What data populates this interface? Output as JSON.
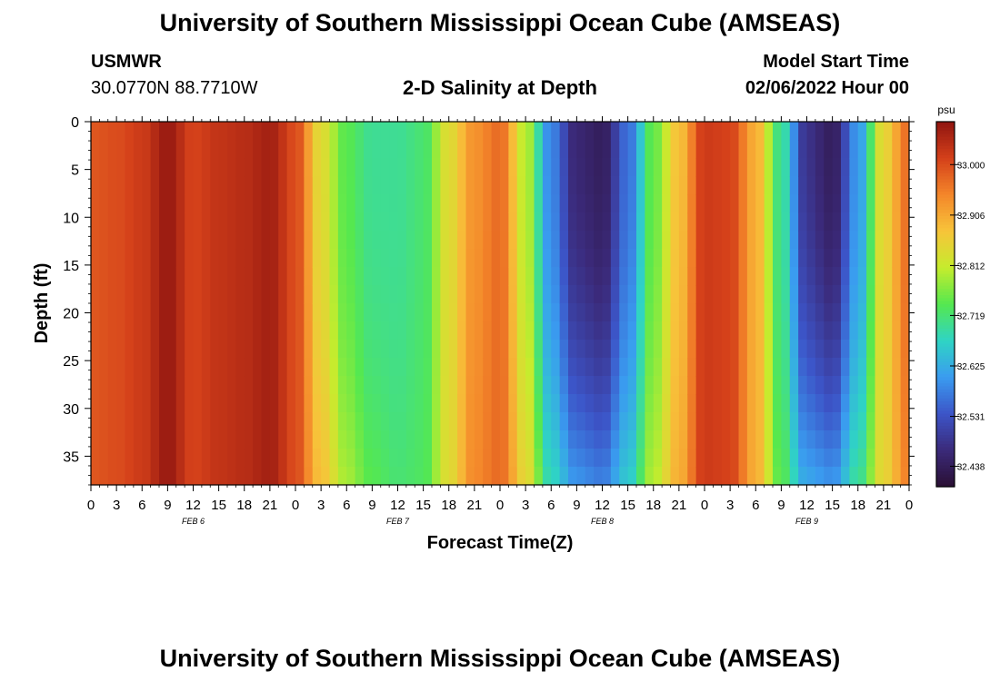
{
  "header": {
    "title": "University of Southern Mississippi Ocean Cube (AMSEAS)",
    "station_name": "USMWR",
    "station_coords": "30.0770N  88.7710W",
    "plot_title": "2-D Salinity at Depth",
    "model_start_label": "Model Start Time",
    "model_start_value": "02/06/2022 Hour 00",
    "repeat_title": "University of Southern Mississippi Ocean Cube (AMSEAS)"
  },
  "chart_data": {
    "type": "heatmap",
    "title": "2-D Salinity at Depth",
    "xlabel": "Forecast Time(Z)",
    "ylabel": "Depth (ft)",
    "x_unit": "forecast hour",
    "xlim": [
      0,
      96
    ],
    "ylim": [
      38,
      0
    ],
    "y_inverted": true,
    "x_tick_labels": [
      "0",
      "3",
      "6",
      "9",
      "12",
      "15",
      "18",
      "21",
      "0",
      "3",
      "6",
      "9",
      "12",
      "15",
      "18",
      "21",
      "0",
      "3",
      "6",
      "9",
      "12",
      "15",
      "18",
      "21",
      "0",
      "3",
      "6",
      "9",
      "12",
      "15",
      "18",
      "21",
      "0"
    ],
    "y_ticks": [
      0,
      5,
      10,
      15,
      20,
      25,
      30,
      35
    ],
    "day_labels": [
      {
        "label": "FEB 6",
        "hour": 12
      },
      {
        "label": "FEB 7",
        "hour": 36
      },
      {
        "label": "FEB 8",
        "hour": 60
      },
      {
        "label": "FEB 9",
        "hour": 84
      }
    ],
    "colorbar": {
      "unit": "psu",
      "min": 32.4,
      "max": 33.08,
      "tick_values": [
        "33.000",
        "32.906",
        "32.812",
        "32.719",
        "32.625",
        "32.531",
        "32.438"
      ],
      "colors": [
        "#2a0f33",
        "#3b2a7a",
        "#3c55c8",
        "#3a9cf0",
        "#2fd4c4",
        "#55e84f",
        "#c6ec2d",
        "#f7c43a",
        "#f4862a",
        "#d4401a",
        "#8f1410"
      ]
    },
    "salinity_profile": {
      "hours": [
        0,
        3,
        6,
        9,
        12,
        15,
        18,
        21,
        24,
        27,
        30,
        33,
        36,
        39,
        42,
        45,
        48,
        51,
        54,
        57,
        60,
        63,
        66,
        69,
        72,
        75,
        78,
        81,
        84,
        87,
        90,
        93,
        96
      ],
      "surface_psu": [
        32.99,
        33.0,
        33.02,
        33.07,
        33.01,
        33.03,
        33.04,
        33.06,
        33.0,
        32.84,
        32.74,
        32.7,
        32.7,
        32.72,
        32.84,
        32.93,
        32.97,
        32.8,
        32.58,
        32.46,
        32.44,
        32.56,
        32.75,
        32.88,
        33.02,
        33.01,
        32.9,
        32.7,
        32.48,
        32.44,
        32.6,
        32.85,
        32.97
      ],
      "bottom_psu": [
        32.99,
        33.0,
        33.02,
        33.07,
        33.01,
        33.03,
        33.04,
        33.06,
        33.0,
        32.88,
        32.79,
        32.74,
        32.72,
        32.73,
        32.84,
        32.94,
        32.97,
        32.85,
        32.68,
        32.6,
        32.58,
        32.66,
        32.8,
        32.9,
        33.02,
        33.01,
        32.9,
        32.74,
        32.62,
        32.6,
        32.7,
        32.85,
        32.95
      ]
    }
  }
}
